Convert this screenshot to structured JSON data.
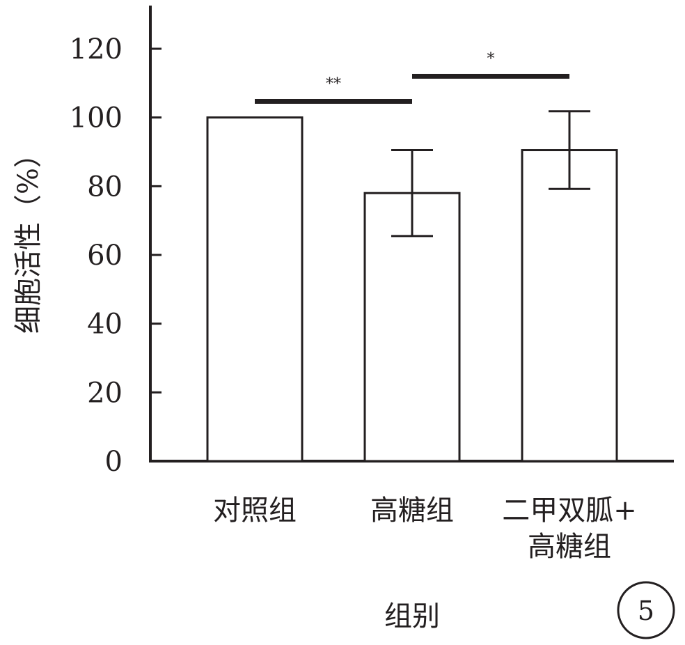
{
  "chart_data": {
    "type": "bar",
    "categories": [
      "对照组",
      "高糖组",
      "二甲双胍+\n高糖组"
    ],
    "category_lines": [
      [
        "对照组"
      ],
      [
        "高糖组"
      ],
      [
        "二甲双胍+",
        "高糖组"
      ]
    ],
    "values": [
      100,
      78,
      90.5
    ],
    "errors": [
      0,
      12.5,
      11.3
    ],
    "xlabel": "组别",
    "ylabel": "细胞活性（%）",
    "ylim": [
      0,
      130
    ],
    "yticks": [
      0,
      20,
      40,
      60,
      80,
      100,
      120
    ],
    "significance": [
      {
        "from": 0,
        "to": 1,
        "label": "**",
        "y": 104.7
      },
      {
        "from": 1,
        "to": 2,
        "label": "*",
        "y": 112
      }
    ],
    "bar_fill": "#ffffff",
    "bar_stroke": "#231f20",
    "grid": false,
    "legend": "none"
  },
  "panel_label": "5"
}
